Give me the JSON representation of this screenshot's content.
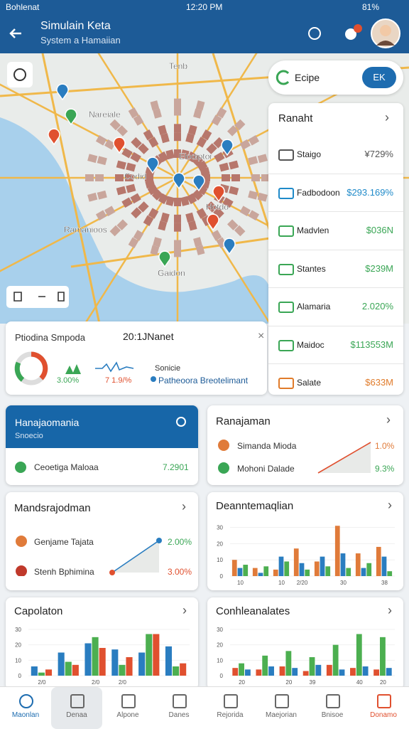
{
  "status_bar": {
    "carrier": "Bohlenat",
    "time": "12:20 PM",
    "battery": "81%"
  },
  "header": {
    "title": "Simulain Keta",
    "subtitle": "System a Hamaiian"
  },
  "map": {
    "labels": [
      "Tenb",
      "Nareiale",
      "Elodiptor",
      "Codid",
      "Hotdo",
      "Ramanioos",
      "Gaidon"
    ]
  },
  "map_toggle": {
    "label": "Ecipe",
    "button": "EK"
  },
  "ranking": {
    "title": "Ranaht",
    "rows": [
      {
        "label": "Staigo",
        "value": "¥729%",
        "color": "#555555"
      },
      {
        "label": "Fadbodoon",
        "value": "$293.169%",
        "color": "#1f8ac9"
      },
      {
        "label": "Madvlen",
        "value": "$036N",
        "color": "#3aa655"
      },
      {
        "label": "Stantes",
        "value": "$239M",
        "color": "#3aa655"
      },
      {
        "label": "Alamaria",
        "value": "2.020%",
        "color": "#3aa655"
      },
      {
        "label": "Maidoc",
        "value": "$113553M",
        "color": "#3aa655"
      },
      {
        "label": "Salate",
        "value": "$633M",
        "color": "#e07b2a"
      }
    ]
  },
  "info_card": {
    "title": "Ptiodina Smpoda",
    "time": "20:1JNanet",
    "donut_label": "3.00%",
    "trend_label": "7 1.9/%",
    "note": "Sonicie",
    "link": "Patheoora Breotelimant"
  },
  "cards": [
    {
      "title": "Hanajaomania",
      "subtitle": "Snoecio",
      "rows": [
        {
          "label": "Ceoetiga Maloaa",
          "value": "7.2901"
        }
      ]
    },
    {
      "title": "Ranajaman",
      "rows": [
        {
          "label": "Simanda Mioda",
          "value": "1.0%"
        },
        {
          "label": "Mohoni Dalade",
          "value": "9.3%"
        }
      ]
    },
    {
      "title": "Mandsrajodman",
      "rows": [
        {
          "label": "Genjame Tajata",
          "value": "2.00%"
        },
        {
          "label": "Stenh Bphimina",
          "value": "3.00%"
        }
      ]
    }
  ],
  "chart_data": [
    {
      "type": "bar",
      "title": "Deanntemaqlian",
      "categories": [
        "10",
        null,
        "10",
        "2/20",
        null,
        "30",
        null,
        "38"
      ],
      "ylim": [
        0,
        32
      ],
      "yticks": [
        0,
        10,
        20,
        30
      ],
      "series": [
        {
          "name": "A",
          "color": "#e07b3a",
          "values": [
            10,
            5,
            4,
            17,
            9,
            31,
            14,
            18
          ]
        },
        {
          "name": "B",
          "color": "#2a7dc0",
          "values": [
            5,
            2,
            12,
            8,
            12,
            14,
            5,
            12
          ]
        },
        {
          "name": "C",
          "color": "#4caf50",
          "values": [
            7,
            6,
            9,
            4,
            6,
            5,
            8,
            3
          ]
        }
      ]
    },
    {
      "type": "bar",
      "title": "Capolaton",
      "categories": [
        "2/0",
        null,
        "2/0",
        "2/0",
        null,
        null
      ],
      "ylim": [
        0,
        30
      ],
      "yticks": [
        0,
        10,
        20,
        30
      ],
      "series": [
        {
          "name": "A",
          "color": "#2a7dc0",
          "values": [
            6,
            15,
            21,
            17,
            15,
            19
          ]
        },
        {
          "name": "B",
          "color": "#4caf50",
          "values": [
            2,
            9,
            25,
            7,
            27,
            6
          ]
        },
        {
          "name": "C",
          "color": "#e0502f",
          "values": [
            4,
            7,
            18,
            12,
            27,
            8
          ]
        }
      ]
    },
    {
      "type": "bar",
      "title": "Conhleanalates",
      "categories": [
        "20",
        null,
        "20",
        "39",
        null,
        "40",
        "20"
      ],
      "ylim": [
        0,
        30
      ],
      "yticks": [
        0,
        10,
        20,
        30
      ],
      "series": [
        {
          "name": "A",
          "color": "#e0502f",
          "values": [
            5,
            4,
            6,
            3,
            7,
            5,
            4
          ]
        },
        {
          "name": "B",
          "color": "#4caf50",
          "values": [
            8,
            13,
            16,
            12,
            20,
            27,
            25
          ]
        },
        {
          "name": "C",
          "color": "#2a7dc0",
          "values": [
            4,
            6,
            5,
            7,
            4,
            6,
            5
          ]
        }
      ]
    }
  ],
  "nav": {
    "active": 0,
    "tabs": [
      "Maonlan",
      "Denaa",
      "Alpone",
      "Danes",
      "Rejorida",
      "Maejorian",
      "Bnisoe",
      "Donamo"
    ]
  }
}
